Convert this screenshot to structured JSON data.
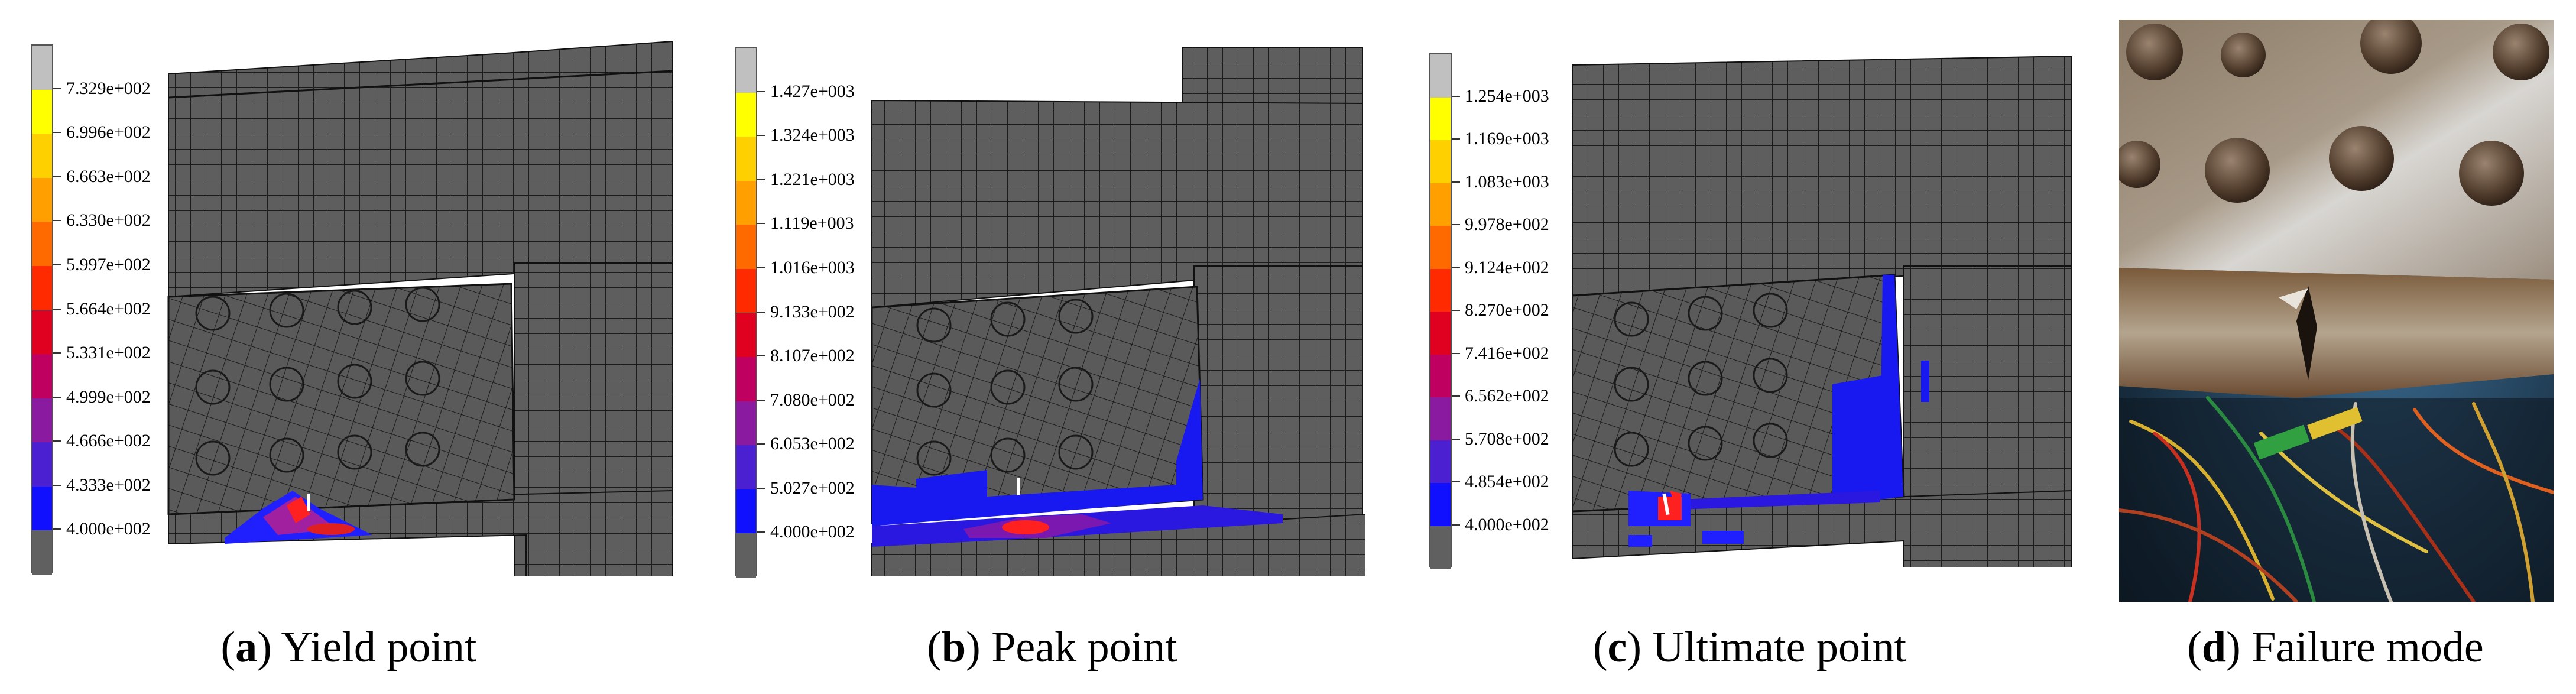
{
  "figure": {
    "panels": [
      {
        "id": "a",
        "caption_letter": "a",
        "caption_text": "Yield point",
        "legend_labels": [
          "7.329e+002",
          "6.996e+002",
          "6.663e+002",
          "6.330e+002",
          "5.997e+002",
          "5.664e+002",
          "5.331e+002",
          "4.999e+002",
          "4.666e+002",
          "4.333e+002",
          "4.000e+002"
        ]
      },
      {
        "id": "b",
        "caption_letter": "b",
        "caption_text": "Peak point",
        "legend_labels": [
          "1.427e+003",
          "1.324e+003",
          "1.221e+003",
          "1.119e+003",
          "1.016e+003",
          "9.133e+002",
          "8.107e+002",
          "7.080e+002",
          "6.053e+002",
          "5.027e+002",
          "4.000e+002"
        ]
      },
      {
        "id": "c",
        "caption_letter": "c",
        "caption_text": "Ultimate point",
        "legend_labels": [
          "1.254e+003",
          "1.169e+003",
          "1.083e+003",
          "9.978e+002",
          "9.124e+002",
          "8.270e+002",
          "7.416e+002",
          "6.562e+002",
          "5.708e+002",
          "4.854e+002",
          "4.000e+002"
        ]
      },
      {
        "id": "d",
        "caption_letter": "d",
        "caption_text": "Failure mode"
      }
    ],
    "legend_colors": [
      "#c0c0c0",
      "#ffff00",
      "#ffd000",
      "#ffa000",
      "#ff6a00",
      "#ff2a00",
      "#e00020",
      "#c00060",
      "#8a1aa0",
      "#4a20d0",
      "#1010ff",
      "#606060"
    ]
  }
}
